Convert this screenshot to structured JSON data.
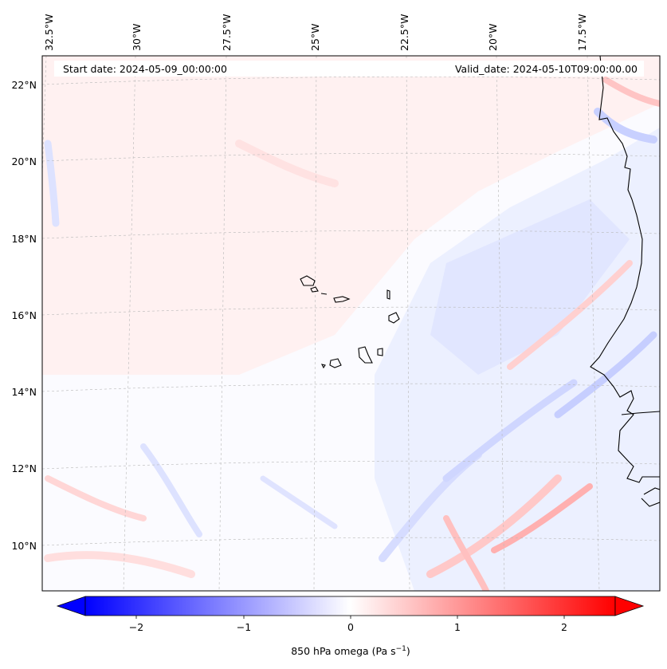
{
  "map": {
    "header": {
      "start_date": "Start date: 2024-05-09_00:00:00",
      "valid_date": "Valid_date: 2024-05-10T09:00:00.00"
    },
    "longitude_labels": [
      "32.5°W",
      "30°W",
      "27.5°W",
      "25°W",
      "22.5°W",
      "20°W",
      "17.5°W"
    ],
    "latitude_labels": [
      "22°N",
      "20°N",
      "18°N",
      "16°N",
      "14°N",
      "12°N",
      "10°N"
    ],
    "field": "850 hPa omega",
    "colors": {
      "negative": "#0000ff",
      "zero": "#ffffff",
      "positive": "#ff0000",
      "coastline": "#000000",
      "gridline": "#b0b0b0"
    }
  },
  "colorbar": {
    "ticks": [
      "−2",
      "−1",
      "0",
      "1",
      "2"
    ],
    "label_main": "850 hPa omega (Pa s",
    "label_exp": "−1",
    "label_close": ")",
    "range": [
      -2.75,
      2.75
    ]
  }
}
